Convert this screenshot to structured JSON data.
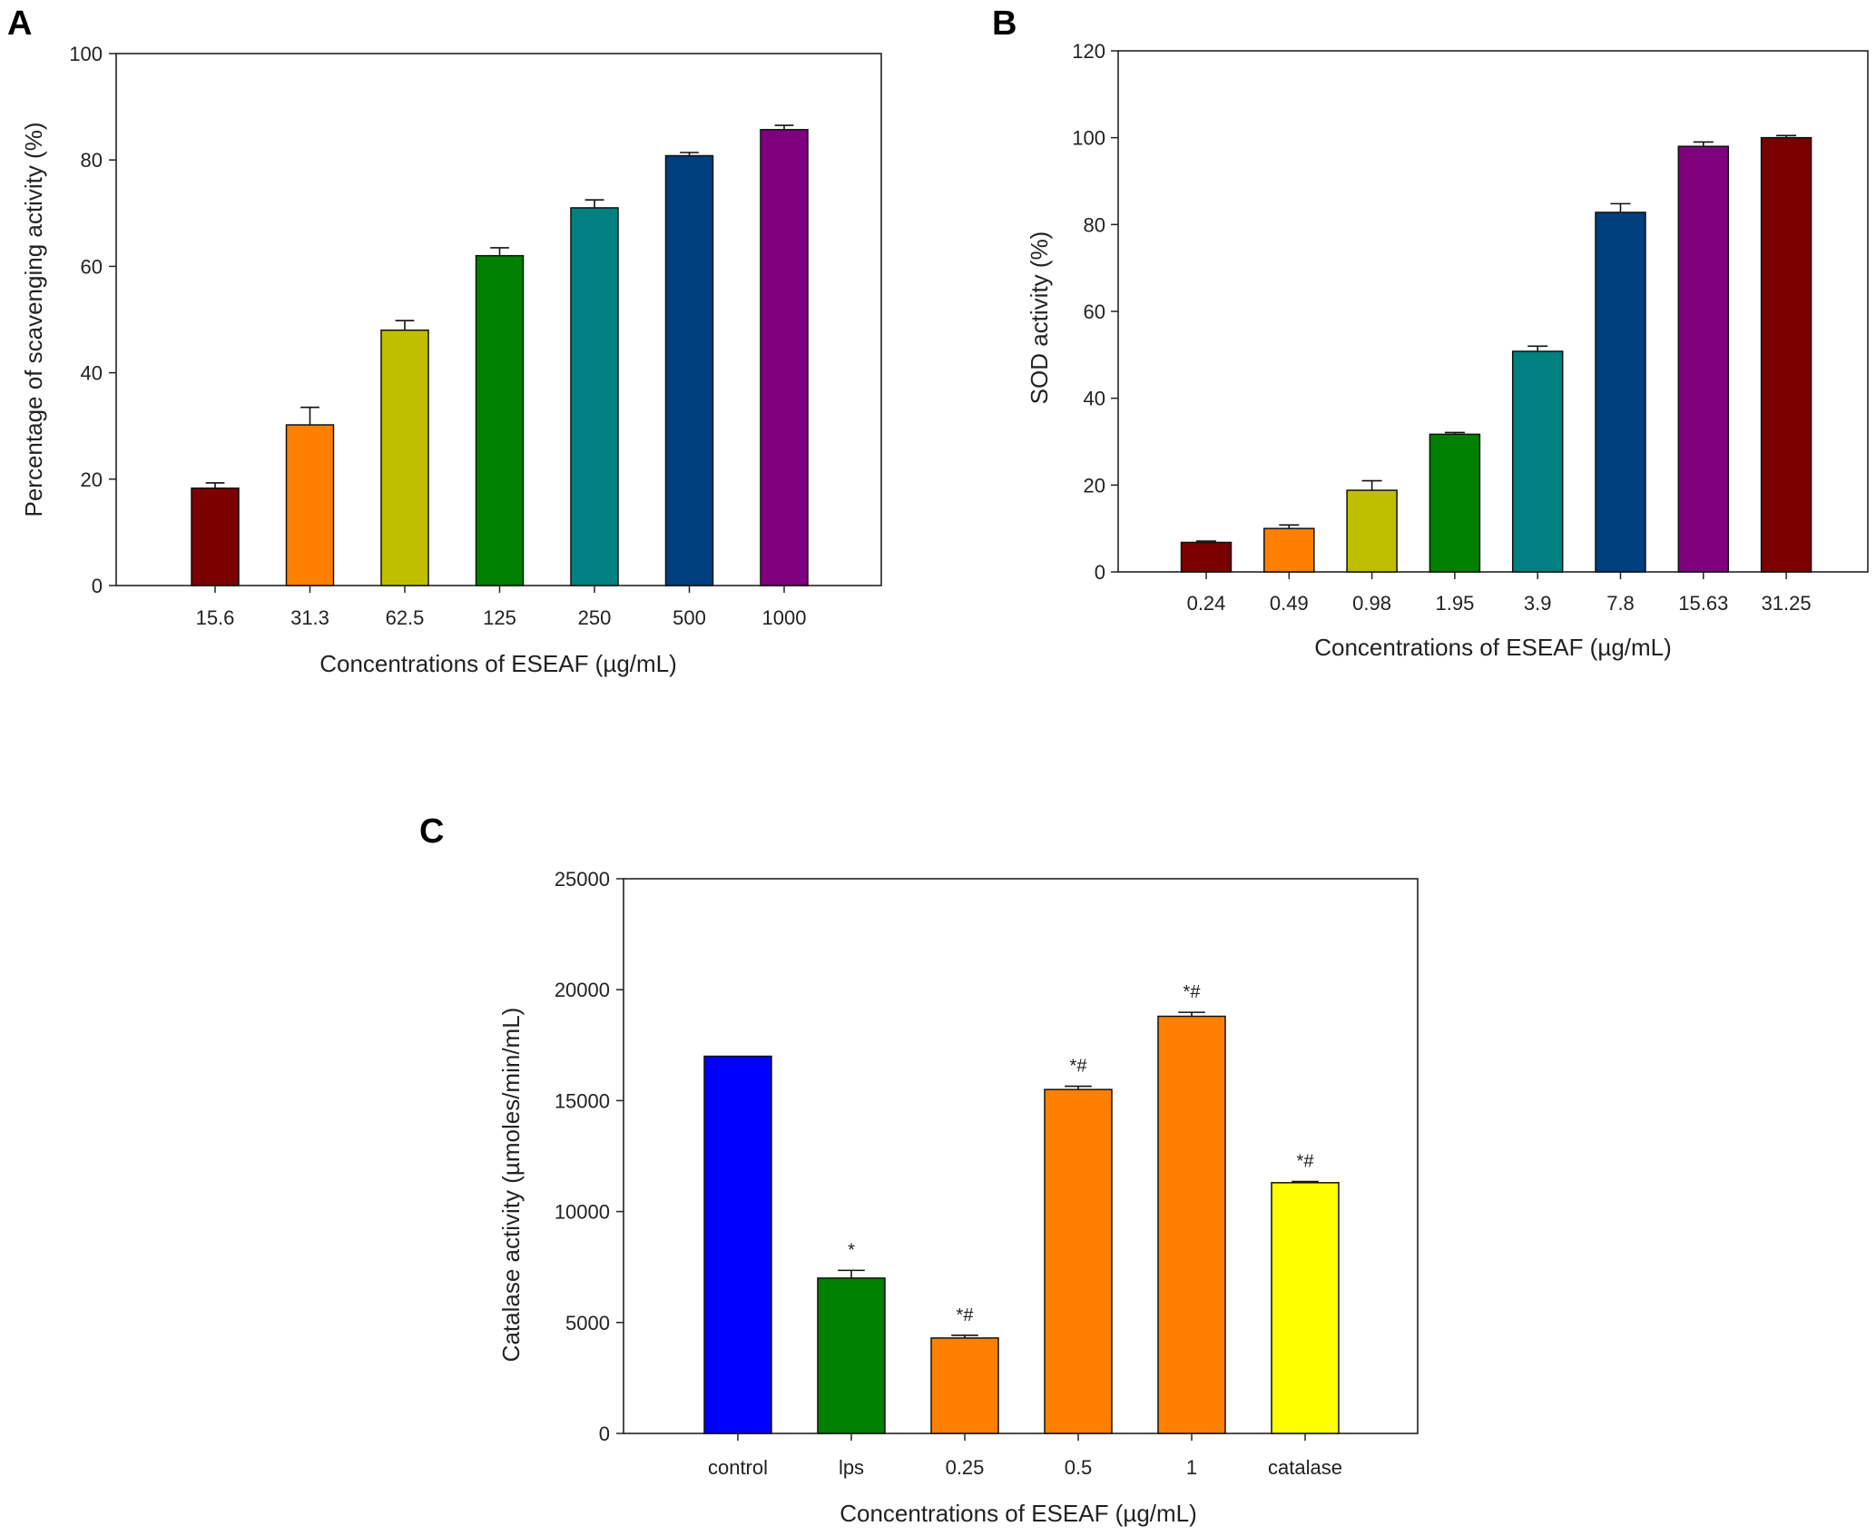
{
  "colors": {
    "maroon": "#7b0000",
    "orange": "#ff8000",
    "olive": "#bfbf00",
    "green": "#008000",
    "teal": "#008080",
    "navy": "#003f7f",
    "purple": "#7f007f",
    "blue": "#0000ff",
    "yellow": "#ffff00"
  },
  "chart_data": [
    {
      "panel": "A",
      "type": "bar",
      "xlabel": "Concentrations of ESEAF (µg/mL)",
      "ylabel": "Percentage of scavenging activity (%)",
      "ylim": [
        0,
        100
      ],
      "yticks": [
        "0",
        "20",
        "40",
        "60",
        "80",
        "100"
      ],
      "categories": [
        "15.6",
        "31.3",
        "62.5",
        "125",
        "250",
        "500",
        "1000"
      ],
      "values": [
        18.3,
        30.2,
        48.0,
        62.0,
        71.0,
        80.8,
        85.7
      ],
      "errors": [
        1.0,
        3.3,
        1.8,
        1.5,
        1.5,
        0.6,
        0.8
      ],
      "bar_colors": [
        "maroon",
        "orange",
        "olive",
        "green",
        "teal",
        "navy",
        "purple"
      ],
      "annotations": [
        "",
        "",
        "",
        "",
        "",
        "",
        ""
      ]
    },
    {
      "panel": "B",
      "type": "bar",
      "xlabel": "Concentrations of ESEAF (µg/mL)",
      "ylabel": "SOD activity (%)",
      "ylim": [
        0,
        120
      ],
      "yticks": [
        "0",
        "20",
        "40",
        "60",
        "80",
        "100",
        "120"
      ],
      "categories": [
        "0.24",
        "0.49",
        "0.98",
        "1.95",
        "3.9",
        "7.8",
        "15.63",
        "31.25"
      ],
      "values": [
        6.8,
        10.0,
        18.8,
        31.7,
        50.8,
        82.8,
        98.0,
        100.0
      ],
      "errors": [
        0.3,
        0.8,
        2.2,
        0.4,
        1.2,
        2.0,
        1.0,
        0.5
      ],
      "bar_colors": [
        "maroon",
        "orange",
        "olive",
        "green",
        "teal",
        "navy",
        "purple",
        "maroon"
      ],
      "annotations": [
        "",
        "",
        "",
        "",
        "",
        "",
        "",
        ""
      ]
    },
    {
      "panel": "C",
      "type": "bar",
      "xlabel": "Concentrations of ESEAF (µg/mL)",
      "ylabel": "Catalase activity (µmoles/min/mL)",
      "ylim": [
        0,
        25000
      ],
      "yticks": [
        "0",
        "5000",
        "10000",
        "15000",
        "20000",
        "25000"
      ],
      "categories": [
        "control",
        "lps",
        "0.25",
        "0.5",
        "1",
        "catalase"
      ],
      "values": [
        17000,
        7000,
        4300,
        15500,
        18800,
        11300
      ],
      "errors": [
        0,
        350,
        120,
        150,
        180,
        50
      ],
      "bar_colors": [
        "blue",
        "green",
        "orange",
        "orange",
        "orange",
        "yellow"
      ],
      "annotations": [
        "",
        "*",
        "*#",
        "*#",
        "*#",
        "*#"
      ]
    }
  ]
}
